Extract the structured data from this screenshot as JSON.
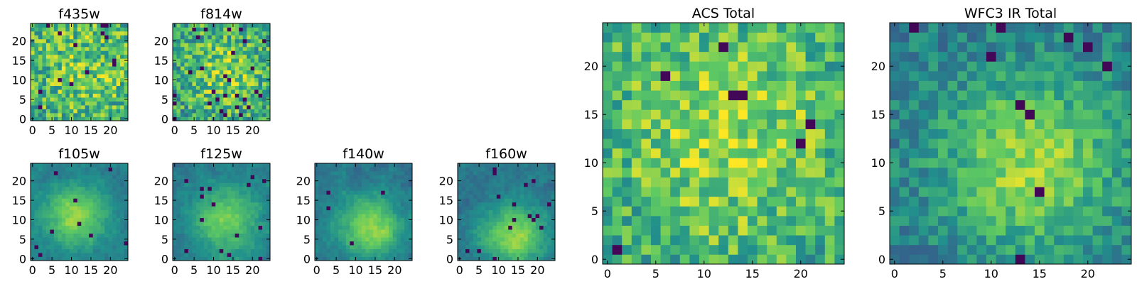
{
  "figure": {
    "colormap": [
      "#440154",
      "#3b528b",
      "#21918c",
      "#5ec962",
      "#fde725"
    ],
    "panels": [
      {
        "id": "f435w",
        "title": "f435w",
        "size": 25,
        "seed": 11,
        "gx": 14,
        "gy": 13,
        "sigma": 9,
        "amp": 0.15,
        "base": 0.62,
        "noise": 0.26,
        "dark": 0.03,
        "xticks": [
          0,
          5,
          10,
          15,
          20
        ],
        "yticks": [
          0,
          5,
          10,
          15,
          20
        ]
      },
      {
        "id": "f814w",
        "title": "f814w",
        "size": 25,
        "seed": 23,
        "gx": 13,
        "gy": 12,
        "sigma": 8,
        "amp": 0.25,
        "base": 0.55,
        "noise": 0.26,
        "dark": 0.04,
        "xticks": [
          0,
          5,
          10,
          15,
          20
        ],
        "yticks": [
          0,
          5,
          10,
          15,
          20
        ]
      },
      {
        "id": "f105w",
        "title": "f105w",
        "size": 25,
        "seed": 37,
        "gx": 11,
        "gy": 11,
        "sigma": 5.5,
        "amp": 0.42,
        "base": 0.42,
        "noise": 0.1,
        "dark": 0.015,
        "smooth": true,
        "xticks": [
          0,
          5,
          10,
          15,
          20
        ],
        "yticks": [
          0,
          5,
          10,
          15,
          20
        ]
      },
      {
        "id": "f125w",
        "title": "f125w",
        "size": 25,
        "seed": 41,
        "gx": 13,
        "gy": 10,
        "sigma": 6,
        "amp": 0.4,
        "base": 0.4,
        "noise": 0.12,
        "dark": 0.02,
        "smooth": true,
        "xticks": [
          0,
          5,
          10,
          15,
          20
        ],
        "yticks": [
          0,
          5,
          10,
          15,
          20
        ]
      },
      {
        "id": "f140w",
        "title": "f140w",
        "size": 25,
        "seed": 53,
        "gx": 14,
        "gy": 8,
        "sigma": 5.5,
        "amp": 0.45,
        "base": 0.4,
        "noise": 0.12,
        "dark": 0.02,
        "smooth": true,
        "xticks": [
          0,
          5,
          10,
          15,
          20
        ],
        "yticks": [
          0,
          5,
          10,
          15,
          20
        ]
      },
      {
        "id": "f160w",
        "title": "f160w",
        "size": 25,
        "seed": 67,
        "gx": 14,
        "gy": 6,
        "sigma": 5.5,
        "amp": 0.45,
        "base": 0.4,
        "noise": 0.12,
        "dark": 0.02,
        "smooth": true,
        "xticks": [
          0,
          5,
          10,
          15,
          20
        ],
        "yticks": [
          0,
          5,
          10,
          15,
          20
        ]
      },
      {
        "id": "acs-total",
        "title": "ACS Total",
        "size": 25,
        "seed": 79,
        "gx": 12,
        "gy": 13,
        "sigma": 8,
        "amp": 0.25,
        "base": 0.6,
        "noise": 0.22,
        "dark": 0.02,
        "xticks": [
          0,
          5,
          10,
          15,
          20
        ],
        "yticks": [
          0,
          5,
          10,
          15,
          20
        ]
      },
      {
        "id": "wfc3-ir-total",
        "title": "WFC3 IR Total",
        "size": 25,
        "seed": 97,
        "gx": 14,
        "gy": 10,
        "sigma": 6.5,
        "amp": 0.42,
        "base": 0.42,
        "noise": 0.14,
        "dark": 0.02,
        "xticks": [
          0,
          5,
          10,
          15,
          20
        ],
        "yticks": [
          0,
          5,
          10,
          15,
          20
        ]
      }
    ]
  },
  "chart_data": [
    {
      "type": "heatmap",
      "title": "f435w",
      "x_range": [
        0,
        24
      ],
      "y_range": [
        0,
        24
      ],
      "grid": false
    },
    {
      "type": "heatmap",
      "title": "f814w",
      "x_range": [
        0,
        24
      ],
      "y_range": [
        0,
        24
      ],
      "grid": false
    },
    {
      "type": "heatmap",
      "title": "f105w",
      "x_range": [
        0,
        24
      ],
      "y_range": [
        0,
        24
      ],
      "grid": false
    },
    {
      "type": "heatmap",
      "title": "f125w",
      "x_range": [
        0,
        24
      ],
      "y_range": [
        0,
        24
      ],
      "grid": false
    },
    {
      "type": "heatmap",
      "title": "f140w",
      "x_range": [
        0,
        24
      ],
      "y_range": [
        0,
        24
      ],
      "grid": false
    },
    {
      "type": "heatmap",
      "title": "f160w",
      "x_range": [
        0,
        24
      ],
      "y_range": [
        0,
        24
      ],
      "grid": false
    },
    {
      "type": "heatmap",
      "title": "ACS Total",
      "x_range": [
        0,
        24
      ],
      "y_range": [
        0,
        24
      ],
      "grid": false
    },
    {
      "type": "heatmap",
      "title": "WFC3 IR Total",
      "x_range": [
        0,
        24
      ],
      "y_range": [
        0,
        24
      ],
      "grid": false
    }
  ]
}
